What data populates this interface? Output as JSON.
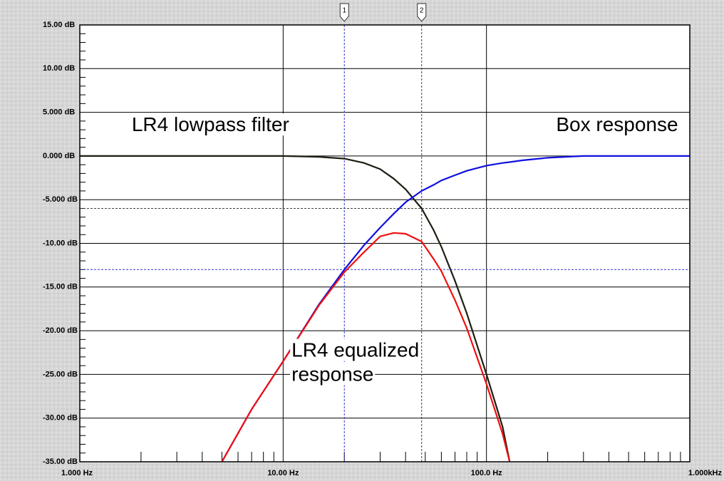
{
  "chart_data": {
    "type": "line",
    "xscale": "log",
    "x": [
      1,
      2,
      3,
      5,
      7,
      10,
      15,
      20,
      25,
      30,
      35,
      40,
      48,
      55,
      60,
      70,
      80,
      100,
      120,
      130,
      150,
      200,
      300,
      500,
      700,
      1000
    ],
    "series": [
      {
        "name": "LR4 lowpass filter",
        "color": "#1e1e14",
        "values": [
          0,
          0,
          0,
          0,
          0,
          0,
          -0.1,
          -0.3,
          -0.8,
          -1.5,
          -2.6,
          -3.8,
          -6,
          -8.5,
          -10.4,
          -14.3,
          -18,
          -25,
          -31,
          -35,
          null,
          null,
          null,
          null,
          null,
          null
        ]
      },
      {
        "name": "Box response",
        "color": "#1010e0",
        "values": [
          null,
          null,
          null,
          -35,
          -29,
          -23.5,
          -17,
          -13,
          -10.2,
          -8.2,
          -6.6,
          -5.3,
          -4,
          -3.3,
          -2.8,
          -2.2,
          -1.7,
          -1.1,
          -0.8,
          -0.7,
          -0.5,
          -0.2,
          0,
          0,
          0,
          0
        ]
      },
      {
        "name": "LR4 equalized response",
        "color": "#ee1010",
        "values": [
          null,
          null,
          null,
          -35,
          -29,
          -23.5,
          -17.1,
          -13.3,
          -11,
          -9.2,
          -8.8,
          -8.9,
          -9.8,
          -11.8,
          -13.2,
          -16.5,
          -19.7,
          -26.1,
          -31.8,
          -35,
          null,
          null,
          null,
          null,
          null,
          null
        ]
      }
    ],
    "annotations": [
      {
        "lines": [
          "LR4 lowpass filter"
        ],
        "x": 1.8,
        "y": 1.8
      },
      {
        "lines": [
          "Box response"
        ],
        "x": 220,
        "y": 1.8
      },
      {
        "lines": [
          "LR4 equalized",
          "response"
        ],
        "x": 11,
        "y": -24
      }
    ],
    "cursors": [
      {
        "label": "1",
        "x": 20,
        "color": "#3030d0"
      },
      {
        "label": "2",
        "x": 48,
        "color": "#404040"
      }
    ],
    "reference_lines": [
      {
        "y": -6,
        "color": "#404040"
      },
      {
        "y": -13,
        "color": "#3030d0"
      }
    ],
    "xlim": [
      1,
      1000
    ],
    "ylim": [
      -35,
      15
    ],
    "xticks": [
      {
        "value": 1,
        "label": "1.000 Hz"
      },
      {
        "value": 10,
        "label": "10.00 Hz"
      },
      {
        "value": 100,
        "label": "100.0 Hz"
      },
      {
        "value": 1000,
        "label": "1.000kHz"
      }
    ],
    "xminorticks": [
      2,
      3,
      4,
      5,
      6,
      7,
      8,
      9,
      20,
      30,
      40,
      50,
      60,
      70,
      80,
      90,
      200,
      300,
      400,
      500,
      600,
      700,
      800,
      900
    ],
    "yticks": [
      {
        "value": 15,
        "label": "15.00 dB"
      },
      {
        "value": 10,
        "label": "10.00 dB"
      },
      {
        "value": 5,
        "label": "5.000 dB"
      },
      {
        "value": 0,
        "label": "0.000 dB"
      },
      {
        "value": -5,
        "label": "-5.000 dB"
      },
      {
        "value": -10,
        "label": "-10.00 dB"
      },
      {
        "value": -15,
        "label": "-15.00 dB"
      },
      {
        "value": -20,
        "label": "-20.00 dB"
      },
      {
        "value": -25,
        "label": "-25.00 dB"
      },
      {
        "value": -30,
        "label": "-30.00 dB"
      },
      {
        "value": -35,
        "label": "-35.00 dB"
      }
    ],
    "yminorticks": [
      14,
      13,
      12,
      11,
      9,
      8,
      7,
      6,
      4,
      3,
      2,
      1,
      -1,
      -2,
      -3,
      -4,
      -6,
      -7,
      -8,
      -9,
      -11,
      -12,
      -13,
      -14,
      -16,
      -17,
      -18,
      -19,
      -21,
      -22,
      -23,
      -24,
      -26,
      -27,
      -28,
      -29,
      -31,
      -32,
      -33,
      -34
    ],
    "grid": true
  }
}
